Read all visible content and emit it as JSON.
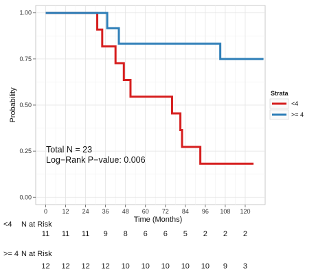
{
  "chart_data": {
    "type": "line",
    "title": "",
    "xlabel": "Time (Months)",
    "ylabel": "Probability",
    "xlim": [
      -6,
      132
    ],
    "ylim": [
      -0.04,
      1.04
    ],
    "x_ticks": [
      0,
      12,
      24,
      36,
      48,
      60,
      72,
      84,
      96,
      108,
      120
    ],
    "y_ticks": [
      0.0,
      0.25,
      0.5,
      0.75,
      1.0
    ],
    "y_tick_labels": [
      "0.00",
      "0.25",
      "0.50",
      "0.75",
      "1.00"
    ],
    "x_tick_labels": [
      "0",
      "12",
      "24",
      "36",
      "48",
      "60",
      "72",
      "84",
      "96",
      "108",
      "120"
    ],
    "grid": true,
    "legend": {
      "title": "Strata",
      "placement": "right",
      "entries": [
        {
          "label": "<4",
          "color": "#d61f1f"
        },
        {
          "label": ">= 4",
          "color": "#2f7fb8"
        }
      ]
    },
    "series": [
      {
        "name": "<4",
        "color": "#d61f1f",
        "x": [
          0,
          31,
          31,
          34,
          34,
          42,
          42,
          47,
          47,
          51,
          51,
          76,
          76,
          81,
          81,
          82,
          82,
          83,
          83,
          93,
          93,
          125
        ],
        "y": [
          1.0,
          1.0,
          0.909,
          0.909,
          0.818,
          0.818,
          0.727,
          0.727,
          0.636,
          0.636,
          0.545,
          0.545,
          0.455,
          0.455,
          0.364,
          0.364,
          0.273,
          0.273,
          0.273,
          0.273,
          0.182,
          0.182
        ]
      },
      {
        "name": ">= 4",
        "color": "#2f7fb8",
        "x": [
          0,
          37,
          37,
          44,
          44,
          105,
          105,
          131
        ],
        "y": [
          1.0,
          1.0,
          0.917,
          0.917,
          0.833,
          0.833,
          0.75,
          0.75
        ]
      }
    ],
    "annotations": {
      "total_n": "Total N = 23",
      "log_rank": "Log−Rank P−value: 0.006"
    },
    "risk_table": {
      "times": [
        0,
        12,
        24,
        36,
        48,
        60,
        72,
        84,
        96,
        108,
        120
      ],
      "groups": [
        {
          "group_label": "<4",
          "header": "N at Risk",
          "counts": [
            "11",
            "11",
            "11",
            "9",
            "8",
            "6",
            "6",
            "5",
            "2",
            "2",
            "2"
          ]
        },
        {
          "group_label": ">= 4",
          "header": "N at Risk",
          "counts": [
            "12",
            "12",
            "12",
            "12",
            "10",
            "10",
            "10",
            "10",
            "10",
            "9",
            "3"
          ]
        }
      ]
    }
  }
}
